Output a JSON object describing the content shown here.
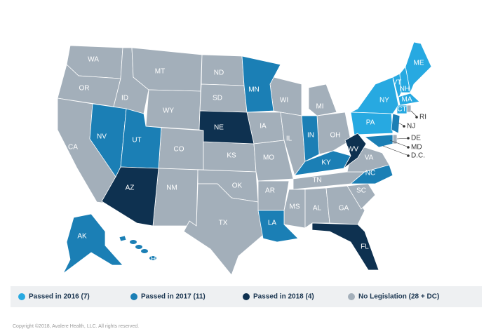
{
  "legend": {
    "items": [
      {
        "label": "Passed in 2016 (7)",
        "color": "#27a9e1",
        "states": [
          "ME",
          "VT",
          "NH",
          "MA",
          "CT",
          "NY",
          "PA"
        ]
      },
      {
        "label": "Passed in 2017 (11)",
        "color": "#1b7fb5",
        "states": [
          "MN",
          "NV",
          "UT",
          "IN",
          "KY",
          "NC",
          "LA",
          "AK",
          "HI",
          "NJ",
          "MD"
        ]
      },
      {
        "label": "Passed in 2018 (4)",
        "color": "#0e3150",
        "states": [
          "NE",
          "AZ",
          "WV",
          "FL"
        ]
      },
      {
        "label": "No Legislation  (28 + DC)",
        "color": "#a3afba",
        "states": [
          "WA",
          "OR",
          "CA",
          "ID",
          "MT",
          "WY",
          "CO",
          "NM",
          "ND",
          "SD",
          "KS",
          "OK",
          "TX",
          "IA",
          "MO",
          "AR",
          "WI",
          "IL",
          "MI",
          "OH",
          "TN",
          "MS",
          "AL",
          "GA",
          "SC",
          "VA",
          "DE",
          "RI",
          "D.C."
        ]
      }
    ]
  },
  "footer": {
    "copyright": "Copyright ©2018, Avalere Health, LLC. All rights reserved."
  }
}
